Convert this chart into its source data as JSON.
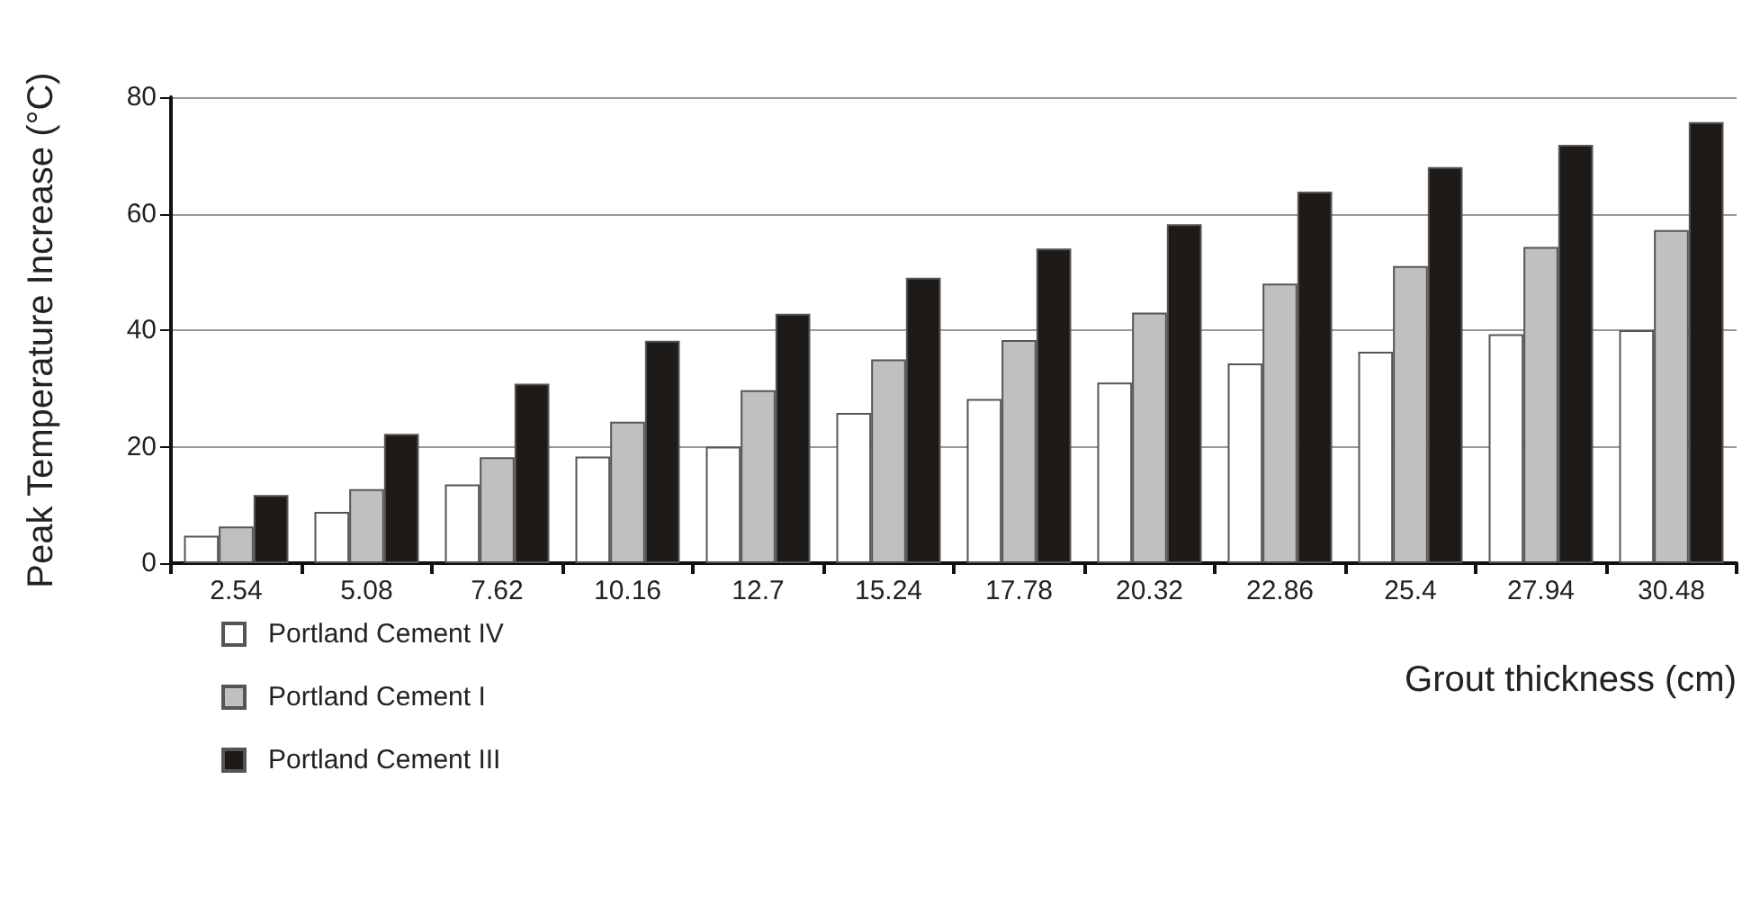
{
  "chart_data": {
    "type": "bar",
    "xlabel": "Grout thickness (cm)",
    "ylabel": "Peak Temperature Increase (°C)",
    "categories": [
      "2.54",
      "5.08",
      "7.62",
      "10.16",
      "12.7",
      "15.24",
      "17.78",
      "20.32",
      "22.86",
      "25.4",
      "27.94",
      "30.48"
    ],
    "series": [
      {
        "name": "Portland Cement IV",
        "color": "#ffffff",
        "values": [
          4.7,
          8.8,
          13.5,
          18.3,
          20,
          25.8,
          28.2,
          31,
          34.3,
          36.3,
          39.3,
          40
        ]
      },
      {
        "name": "Portland Cement I",
        "color": "#c0c0c0",
        "values": [
          6.3,
          12.7,
          18.2,
          24.3,
          29.7,
          35,
          38.3,
          43,
          48,
          51,
          54.3,
          57.2
        ]
      },
      {
        "name": "Portland Cement III",
        "color": "#1e1a17",
        "values": [
          11.7,
          22.2,
          30.8,
          38.2,
          42.8,
          49,
          54,
          58.2,
          63.8,
          68,
          71.8,
          75.7
        ]
      }
    ],
    "ylim": [
      0,
      80
    ],
    "yticks": [
      0,
      20,
      40,
      60,
      80
    ],
    "grid": "y",
    "legend": "bottom left"
  }
}
